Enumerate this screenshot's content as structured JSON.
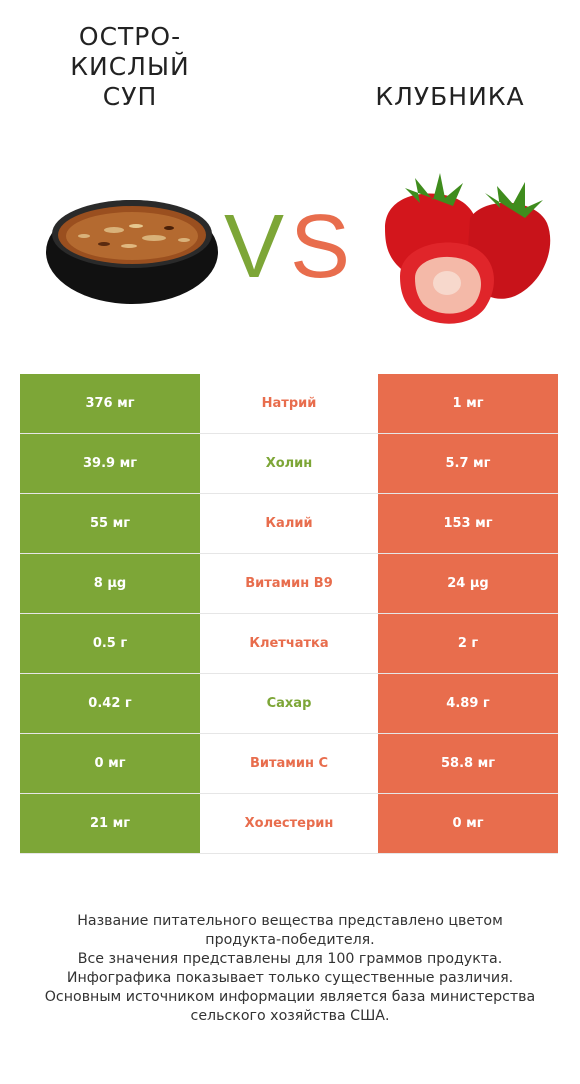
{
  "header": {
    "left_title": "ОСТРО-\nКИСЛЫЙ\nСУП",
    "right_title": "КЛУБНИКА",
    "vs_v": "V",
    "vs_s": "S"
  },
  "colors": {
    "left": "#7da637",
    "right": "#e86d4d",
    "mid_bg": "#ffffff"
  },
  "rows": [
    {
      "left": "376 мг",
      "nutrient": "Натрий",
      "right": "1 мг",
      "winner": "right"
    },
    {
      "left": "39.9 мг",
      "nutrient": "Холин",
      "right": "5.7 мг",
      "winner": "left"
    },
    {
      "left": "55 мг",
      "nutrient": "Калий",
      "right": "153 мг",
      "winner": "right"
    },
    {
      "left": "8 µg",
      "nutrient": "Витамин B9",
      "right": "24 µg",
      "winner": "right"
    },
    {
      "left": "0.5 г",
      "nutrient": "Клетчатка",
      "right": "2 г",
      "winner": "right"
    },
    {
      "left": "0.42 г",
      "nutrient": "Сахар",
      "right": "4.89 г",
      "winner": "left"
    },
    {
      "left": "0 мг",
      "nutrient": "Витамин C",
      "right": "58.8 мг",
      "winner": "right"
    },
    {
      "left": "21 мг",
      "nutrient": "Холестерин",
      "right": "0 мг",
      "winner": "right"
    }
  ],
  "footer": [
    "Название питательного вещества представлено цветом",
    "продукта-победителя.",
    "Все значения представлены для 100 граммов продукта.",
    "Инфографика показывает только существенные различия.",
    "Основным источником информации является база министерства",
    "сельского хозяйства США."
  ]
}
